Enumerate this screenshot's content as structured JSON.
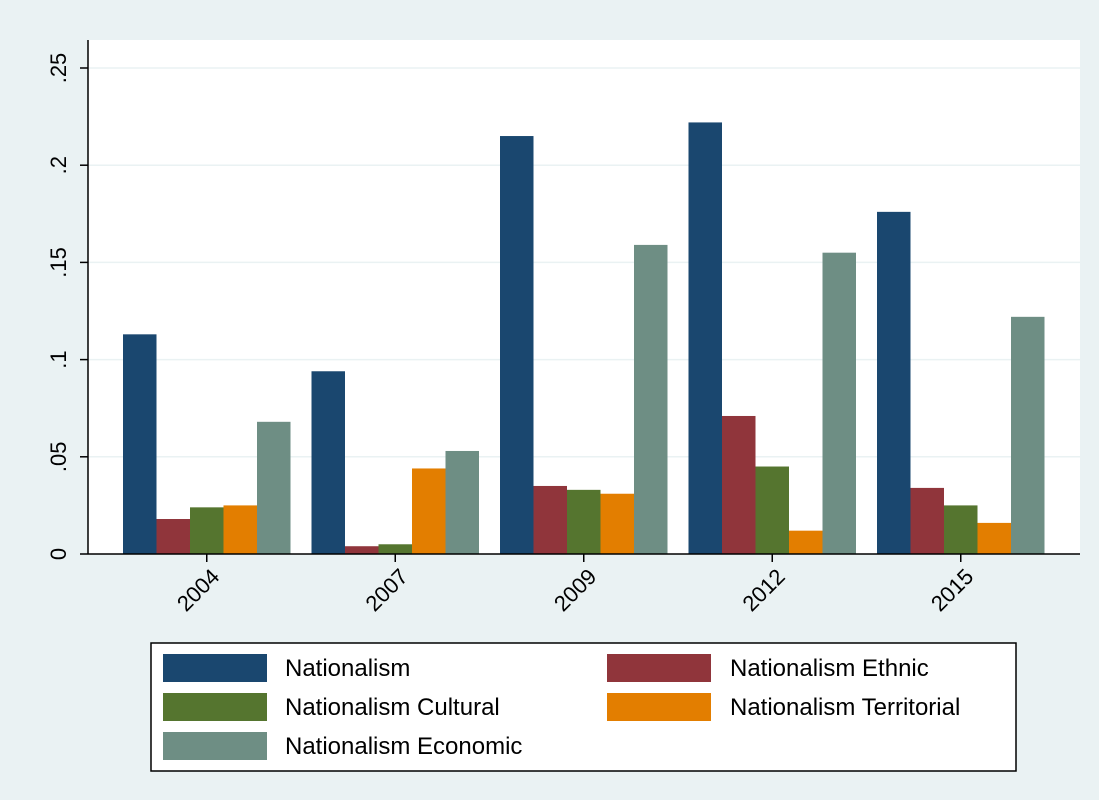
{
  "chart_data": {
    "type": "bar",
    "title": "",
    "xlabel": "",
    "ylabel": "",
    "categories": [
      "2004",
      "2007",
      "2009",
      "2012",
      "2015"
    ],
    "ylim": [
      0,
      0.25
    ],
    "yticks": [
      0,
      0.05,
      0.1,
      0.15,
      0.2,
      0.25
    ],
    "ytick_labels": [
      "0",
      ".05",
      ".1",
      ".15",
      ".2",
      ".25"
    ],
    "grid": true,
    "legend_position": "bottom",
    "series": [
      {
        "name": "Nationalism",
        "color": "#1a476f",
        "values": [
          0.113,
          0.094,
          0.215,
          0.222,
          0.176
        ]
      },
      {
        "name": "Nationalism Ethnic",
        "color": "#90353b",
        "values": [
          0.018,
          0.004,
          0.035,
          0.071,
          0.034
        ]
      },
      {
        "name": "Nationalism Cultural",
        "color": "#55752f",
        "values": [
          0.024,
          0.005,
          0.033,
          0.045,
          0.025
        ]
      },
      {
        "name": "Nationalism Territorial",
        "color": "#e37e00",
        "values": [
          0.025,
          0.044,
          0.031,
          0.012,
          0.016
        ]
      },
      {
        "name": "Nationalism Economic",
        "color": "#6e8e84",
        "values": [
          0.068,
          0.053,
          0.159,
          0.155,
          0.122
        ]
      }
    ]
  }
}
